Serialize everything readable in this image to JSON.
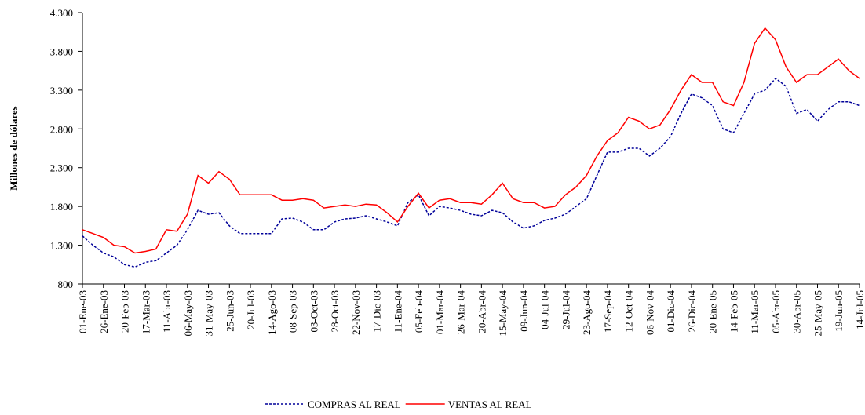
{
  "chart_data": {
    "type": "line",
    "y_label": "Millones de dólares",
    "categories": [
      "01-Ene-03",
      null,
      "26-Ene-03",
      null,
      "20-Feb-03",
      null,
      "17-Mar-03",
      null,
      "11-Abr-03",
      null,
      "06-May-03",
      null,
      "31-May-03",
      null,
      "25-Jun-03",
      null,
      "20-Jul-03",
      null,
      "14-Ago-03",
      null,
      "08-Sep-03",
      null,
      "03-Oct-03",
      null,
      "28-Oct-03",
      null,
      "22-Nov-03",
      null,
      "17-Dic-03",
      null,
      "11-Ene-04",
      null,
      "05-Feb-04",
      null,
      "01-Mar-04",
      null,
      "26-Mar-04",
      null,
      "20-Abr-04",
      null,
      "15-May-04",
      null,
      "09-Jun-04",
      null,
      "04-Jul-04",
      null,
      "29-Jul-04",
      null,
      "23-Ago-04",
      null,
      "17-Sep-04",
      null,
      "12-Oct-04",
      null,
      "06-Nov-04",
      null,
      "01-Dic-04",
      null,
      "26-Dic-04",
      null,
      "20-Ene-05",
      null,
      "14-Feb-05",
      null,
      "11-Mar-05",
      null,
      "05-Abr-05",
      null,
      "30-Abr-05",
      null,
      "25-May-05",
      null,
      "19-Jun-05",
      null,
      "14-Jul-05"
    ],
    "series": [
      {
        "name": "COMPRAS AL REAL",
        "color": "#000099",
        "dash": true,
        "values": [
          1420,
          1300,
          1200,
          1150,
          1050,
          1020,
          1080,
          1100,
          1200,
          1300,
          1500,
          1750,
          1700,
          1720,
          1550,
          1450,
          1450,
          1450,
          1450,
          1640,
          1650,
          1600,
          1500,
          1500,
          1600,
          1640,
          1650,
          1680,
          1640,
          1600,
          1550,
          1850,
          1950,
          1680,
          1800,
          1780,
          1750,
          1700,
          1680,
          1750,
          1720,
          1600,
          1520,
          1550,
          1620,
          1650,
          1700,
          1800,
          1900,
          2200,
          2500,
          2500,
          2550,
          2550,
          2450,
          2550,
          2700,
          3000,
          3250,
          3200,
          3100,
          2800,
          2750,
          3000,
          3250,
          3300,
          3450,
          3350,
          3000,
          3050,
          2900,
          3050,
          3150,
          3150,
          3100
        ]
      },
      {
        "name": "VENTAS AL REAL",
        "color": "#ff0000",
        "dash": false,
        "values": [
          1500,
          1450,
          1400,
          1300,
          1280,
          1200,
          1220,
          1250,
          1500,
          1480,
          1700,
          2200,
          2100,
          2250,
          2150,
          1950,
          1950,
          1950,
          1950,
          1880,
          1880,
          1900,
          1880,
          1780,
          1800,
          1820,
          1800,
          1830,
          1820,
          1720,
          1600,
          1800,
          1970,
          1780,
          1880,
          1900,
          1850,
          1850,
          1830,
          1950,
          2100,
          1900,
          1850,
          1850,
          1780,
          1800,
          1950,
          2050,
          2200,
          2450,
          2650,
          2750,
          2950,
          2900,
          2800,
          2850,
          3050,
          3300,
          3500,
          3400,
          3400,
          3150,
          3100,
          3400,
          3900,
          4100,
          3950,
          3600,
          3400,
          3500,
          3500,
          3600,
          3700,
          3550,
          3450
        ]
      }
    ],
    "ylim": [
      800,
      4300
    ],
    "yticks": [
      800,
      {
        "value": 1300,
        "label": "1.300"
      },
      {
        "value": 1800,
        "label": "1.800"
      },
      {
        "value": 2300,
        "label": "2.300"
      },
      {
        "value": 2800,
        "label": "2.800"
      },
      {
        "value": 3300,
        "label": "3.300"
      },
      {
        "value": 3800,
        "label": "3.800"
      },
      {
        "value": 4300,
        "label": "4.300"
      }
    ],
    "grid": false
  }
}
